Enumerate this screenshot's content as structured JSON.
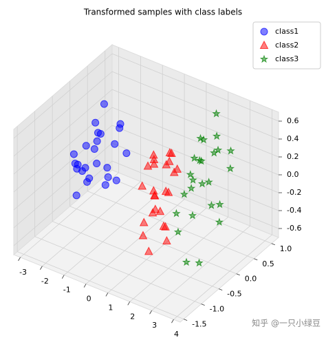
{
  "chart_data": {
    "type": "scatter3d",
    "title": "Transformed samples with class labels",
    "xlim": [
      -3.3,
      4.3
    ],
    "ylim": [
      -1.6,
      1.2
    ],
    "zlim": [
      -0.7,
      0.7
    ],
    "xticks": [
      -3,
      -2,
      -1,
      0,
      1,
      2,
      3,
      4
    ],
    "yticks": [
      -1.5,
      {
        "value": -1,
        "label": "-1.0"
      },
      -0.5,
      {
        "value": 0,
        "label": "0.0"
      },
      0.5,
      {
        "value": 1,
        "label": "1.0"
      }
    ],
    "zticks": [
      -0.6,
      -0.4,
      -0.2,
      {
        "value": 0,
        "label": "0.0"
      },
      0.2,
      0.4,
      0.6
    ],
    "grid": true,
    "legend": "upper right",
    "series": [
      {
        "name": "class1",
        "color": "#0000ff",
        "marker": "circle",
        "x": [
          -2.5,
          -2.1,
          -1.8,
          -2.9,
          -2.3,
          -1.6,
          -2.7,
          -2.0,
          -2.4,
          -1.9,
          -2.2,
          -3.0,
          -1.7,
          -2.6,
          -2.8,
          -2.0,
          -1.5,
          -2.3,
          -2.5,
          -1.9,
          -2.2,
          -2.7,
          -1.2,
          -2.1,
          -2.4
        ],
        "y": [
          0.3,
          -0.2,
          0.5,
          0.1,
          -0.4,
          0.0,
          0.6,
          0.2,
          -0.1,
          0.4,
          -0.5,
          0.3,
          -0.3,
          0.0,
          -0.2,
          0.6,
          0.2,
          0.1,
          -0.3,
          -0.1,
          0.4,
          0.5,
          0.3,
          -0.6,
          0.2
        ],
        "z": [
          0.1,
          -0.2,
          0.2,
          -0.3,
          0.0,
          -0.1,
          0.3,
          -0.4,
          0.1,
          0.0,
          -0.3,
          -0.5,
          0.2,
          -0.2,
          0.0,
          0.1,
          -0.3,
          0.3,
          -0.1,
          0.2,
          -0.4,
          0.0,
          0.0,
          0.1,
          -0.2
        ]
      },
      {
        "name": "class2",
        "color": "#ff0000",
        "marker": "triangle",
        "x": [
          1.0,
          1.4,
          0.8,
          1.6,
          1.2,
          0.9,
          1.5,
          1.1,
          1.3,
          0.7,
          1.7,
          1.0,
          1.2,
          1.4,
          0.9,
          1.6,
          1.1,
          1.3,
          0.8,
          1.5,
          1.2,
          1.0,
          1.4,
          1.1,
          1.3
        ],
        "y": [
          -0.3,
          -0.1,
          -0.5,
          0.0,
          -0.4,
          -0.2,
          -0.6,
          0.1,
          -0.3,
          -0.1,
          -0.4,
          -0.6,
          0.0,
          -0.2,
          -0.4,
          -0.3,
          -0.5,
          0.1,
          -0.2,
          -0.1,
          -0.7,
          -0.3,
          -0.5,
          0.0,
          -0.2
        ],
        "z": [
          0.4,
          0.3,
          0.1,
          0.2,
          0.0,
          -0.1,
          0.5,
          0.3,
          -0.2,
          0.2,
          -0.3,
          -0.4,
          -0.1,
          0.0,
          0.3,
          -0.5,
          -0.6,
          0.1,
          -0.3,
          0.4,
          -0.2,
          0.0,
          -0.1,
          0.2,
          -0.4
        ]
      },
      {
        "name": "class3",
        "color": "#008000",
        "marker": "star",
        "x": [
          2.3,
          2.6,
          2.9,
          2.1,
          2.4,
          2.8,
          3.1,
          2.2,
          2.5,
          2.7,
          3.0,
          2.4,
          2.6,
          3.3,
          2.9,
          2.2,
          2.5,
          2.8,
          3.2,
          2.0,
          2.6,
          2.4,
          2.9,
          3.4,
          2.7
        ],
        "y": [
          0.2,
          0.5,
          -0.1,
          0.8,
          -0.3,
          0.3,
          -0.5,
          0.0,
          0.6,
          -0.2,
          0.1,
          0.4,
          -0.6,
          -0.8,
          0.7,
          -0.4,
          0.1,
          -0.3,
          0.2,
          0.5,
          0.9,
          -0.1,
          0.4,
          -0.5,
          0.0
        ],
        "z": [
          0.3,
          0.5,
          0.2,
          0.6,
          0.1,
          0.4,
          0.0,
          0.2,
          0.3,
          0.5,
          -0.1,
          0.0,
          -0.2,
          -0.4,
          0.1,
          -0.1,
          0.6,
          0.3,
          -0.3,
          0.4,
          0.2,
          0.1,
          -0.2,
          -0.5,
          0.4
        ]
      }
    ]
  },
  "watermark": "知乎 @一只小绿豆"
}
